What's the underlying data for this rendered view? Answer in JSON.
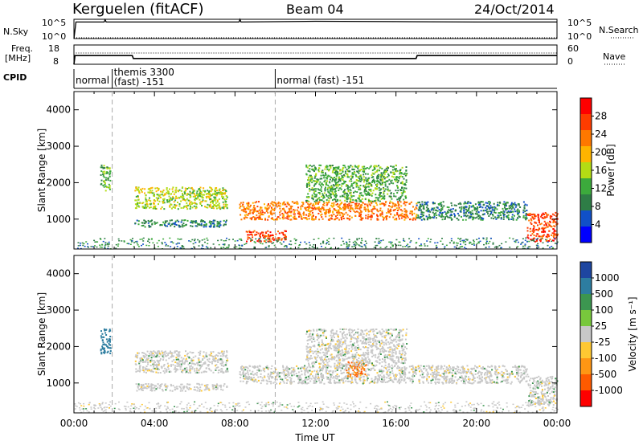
{
  "header": {
    "station": "Kerguelen (fitACF)",
    "beam": "Beam 04",
    "date": "24/Oct/2014"
  },
  "small_panels": {
    "nsky_label": "N.Sky",
    "nsky_ticks": [
      "10^5",
      "10^0"
    ],
    "nsearch_label": "N.Search",
    "freq_label_1": "Freq.",
    "freq_label_2": "[MHz]",
    "freq_ticks": [
      "18",
      "8"
    ],
    "nave_label": "Nave",
    "nave_ticks": [
      "60",
      "0"
    ],
    "cpid_label": "CPID"
  },
  "chart_data": [
    {
      "type": "line",
      "name": "N.Sky",
      "note": "time series 00:00–24:00 UT, log scale 10^0–10^5",
      "x": [
        0,
        0.1,
        1.5,
        1.55,
        1.6,
        3,
        6,
        8.2,
        8.25,
        8.3,
        12,
        16,
        20,
        24
      ],
      "y": [
        1,
        20000,
        20000,
        80000,
        20000,
        20000,
        20000,
        20000,
        90000,
        20000,
        30000,
        25000,
        20000,
        20000
      ],
      "ylim": [
        1,
        100000
      ]
    },
    {
      "type": "line",
      "name": "Freq.",
      "ylabel": "Freq. [MHz]",
      "ylim": [
        8,
        18
      ],
      "x": [
        0,
        0.05,
        2.9,
        2.95,
        17.0,
        17.05,
        24
      ],
      "y": [
        8,
        12.5,
        12.5,
        11.0,
        11.0,
        12.5,
        12.5
      ]
    },
    {
      "type": "table",
      "name": "CPID",
      "segments": [
        {
          "start": 0.0,
          "end": 1.9,
          "label": "normal"
        },
        {
          "start": 1.9,
          "end": 10.0,
          "label": "themis 3300 (fast) -151"
        },
        {
          "start": 10.0,
          "end": 24.0,
          "label": "normal (fast) -151"
        }
      ]
    },
    {
      "type": "heatmap",
      "name": "Power",
      "ylabel": "Slant Range [km]",
      "yticks": [
        "1000",
        "2000",
        "3000",
        "4000"
      ],
      "ylim": [
        180,
        4500
      ],
      "xlim": [
        0,
        24
      ],
      "colorbar": {
        "label": "Power [dB]",
        "ticks": [
          "4",
          "8",
          "12",
          "16",
          "20",
          "24",
          "28"
        ],
        "colors": [
          "#0000ff",
          "#1050c8",
          "#2e7d46",
          "#3caa3c",
          "#b4dc14",
          "#ffb400",
          "#ff7800",
          "#ff3c00",
          "#ff0000"
        ]
      },
      "regions": [
        {
          "t0": 1.3,
          "t1": 1.8,
          "r0": 1800,
          "r1": 2500,
          "v": 10
        },
        {
          "t0": 3.0,
          "t1": 7.6,
          "r0": 1300,
          "r1": 1900,
          "v": 14
        },
        {
          "t0": 3.0,
          "t1": 7.6,
          "r0": 800,
          "r1": 1000,
          "v": 8
        },
        {
          "t0": 8.2,
          "t1": 17.0,
          "r0": 1000,
          "r1": 1500,
          "v": 22
        },
        {
          "t0": 8.5,
          "t1": 10.5,
          "r0": 400,
          "r1": 700,
          "v": 26
        },
        {
          "t0": 11.5,
          "t1": 16.5,
          "r0": 1500,
          "r1": 2500,
          "v": 12
        },
        {
          "t0": 17.0,
          "t1": 22.5,
          "r0": 1000,
          "r1": 1500,
          "v": 8
        },
        {
          "t0": 22.5,
          "t1": 24.0,
          "r0": 400,
          "r1": 1200,
          "v": 28
        }
      ]
    },
    {
      "type": "heatmap",
      "name": "Velocity",
      "ylabel": "Slant Range [km]",
      "xlabel": "Time UT",
      "yticks": [
        "1000",
        "2000",
        "3000",
        "4000"
      ],
      "xticks": [
        "00:00",
        "04:00",
        "08:00",
        "12:00",
        "16:00",
        "20:00",
        "00:00"
      ],
      "ylim": [
        180,
        4500
      ],
      "xlim": [
        0,
        24
      ],
      "colorbar": {
        "label": "Velocity [m s⁻¹]",
        "ticks": [
          "1000",
          "500",
          "100",
          "25",
          "-25",
          "-100",
          "-500",
          "-1000"
        ],
        "colors": [
          "#1e46a0",
          "#2d7da0",
          "#3c9650",
          "#78c83c",
          "#c8c8c8",
          "#ffc832",
          "#ff9614",
          "#ff5a00",
          "#ff0000"
        ]
      },
      "regions": [
        {
          "t0": 1.3,
          "t1": 1.8,
          "r0": 1800,
          "r1": 2500,
          "v": 500
        },
        {
          "t0": 3.0,
          "t1": 7.6,
          "r0": 1300,
          "r1": 1900,
          "v": 0
        },
        {
          "t0": 3.0,
          "t1": 7.6,
          "r0": 800,
          "r1": 1000,
          "v": 0
        },
        {
          "t0": 8.2,
          "t1": 17.0,
          "r0": 1000,
          "r1": 1500,
          "v": 0
        },
        {
          "t0": 13.5,
          "t1": 14.5,
          "r0": 1200,
          "r1": 1600,
          "v": -600
        },
        {
          "t0": 11.5,
          "t1": 16.5,
          "r0": 1500,
          "r1": 2500,
          "v": 0
        },
        {
          "t0": 17.0,
          "t1": 22.5,
          "r0": 1000,
          "r1": 1500,
          "v": 0
        },
        {
          "t0": 22.5,
          "t1": 24.0,
          "r0": 400,
          "r1": 1200,
          "v": 0
        }
      ]
    }
  ]
}
